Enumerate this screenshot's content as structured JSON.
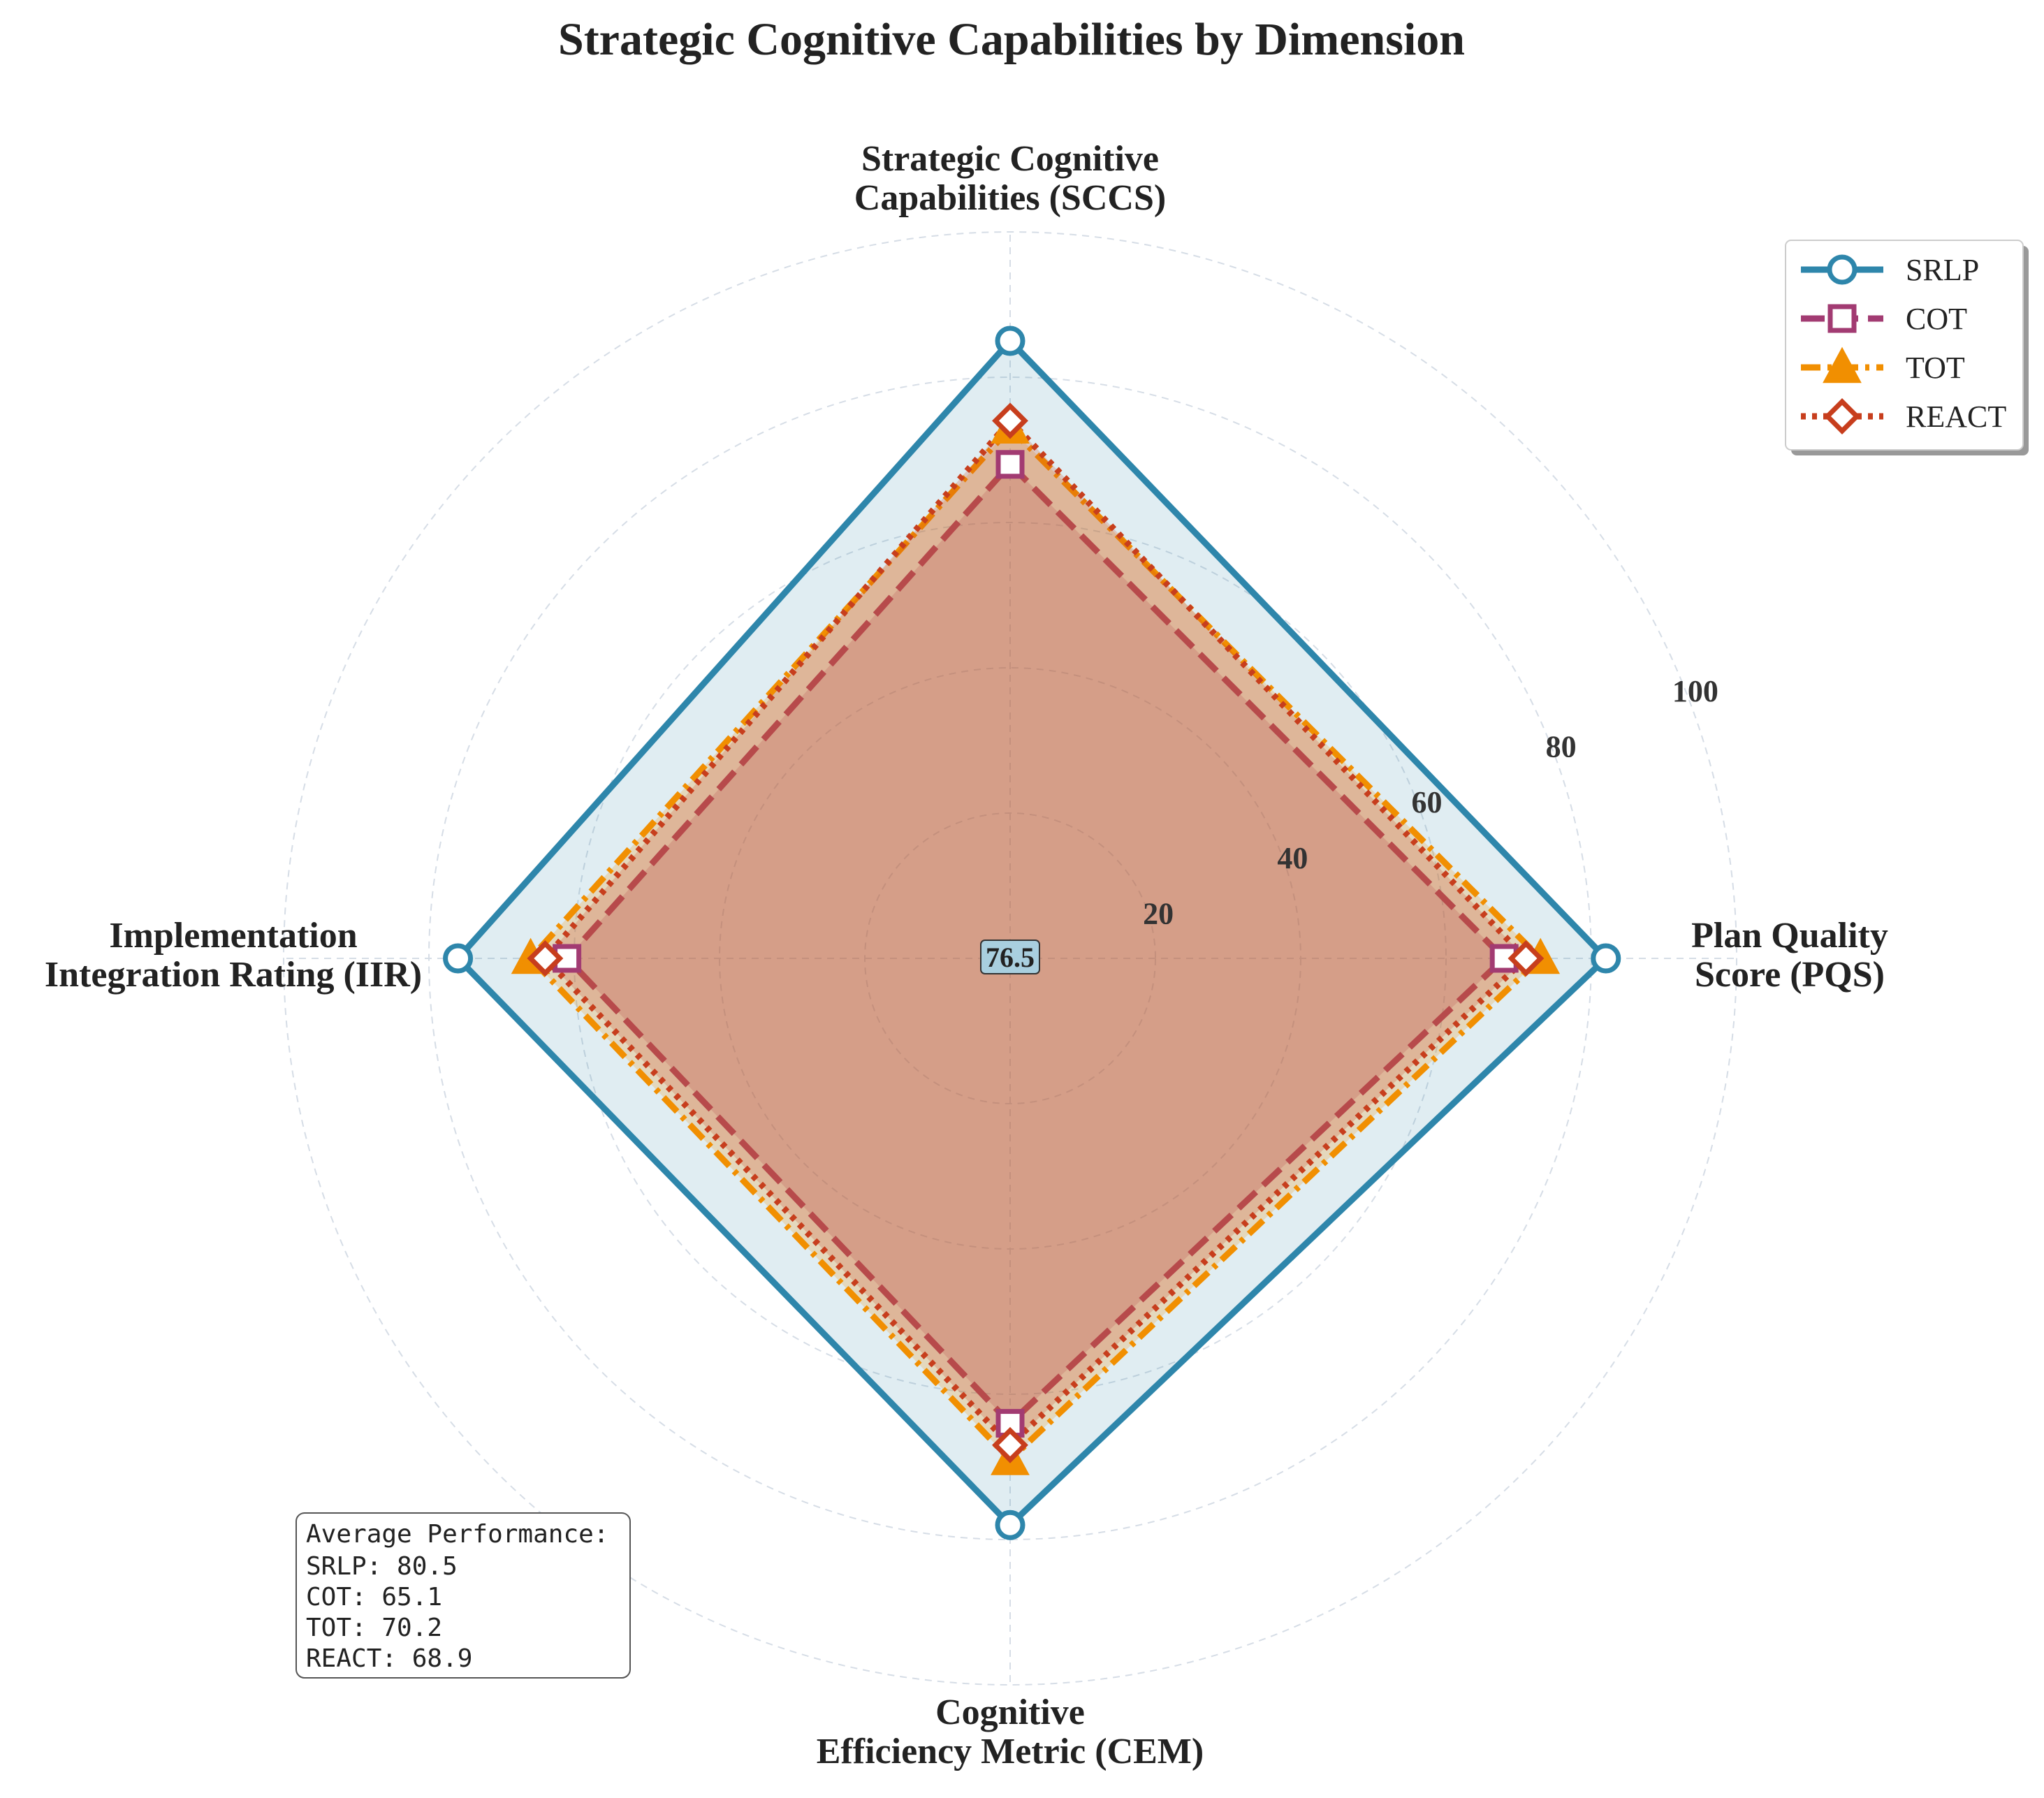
{
  "chart_data": {
    "type": "radar",
    "title": "Strategic Cognitive Capabilities by Dimension",
    "axes": [
      [
        "Strategic Cognitive",
        "Capabilities (SCCS)"
      ],
      [
        "Plan Quality",
        "Score (PQS)"
      ],
      [
        "Cognitive",
        "Efficiency Metric (CEM)"
      ],
      [
        "Implementation",
        "Integration Rating (IIR)"
      ]
    ],
    "rlim": [
      0,
      100
    ],
    "rticks": [
      "20",
      "40",
      "60",
      "80",
      "100"
    ],
    "grid": true,
    "legend_position": "top-right",
    "center_label": "76.5",
    "series": [
      {
        "name": "SRLP",
        "color": "#2e86ab",
        "marker": "circle",
        "dash": "solid",
        "values": [
          85,
          82,
          78,
          76
        ]
      },
      {
        "name": "COT",
        "color": "#a23b72",
        "marker": "square",
        "dash": "dashed",
        "values": [
          68,
          68,
          64,
          61
        ]
      },
      {
        "name": "TOT",
        "color": "#f18f01",
        "marker": "triangle",
        "dash": "dashdot",
        "values": [
          73,
          73,
          69,
          66
        ]
      },
      {
        "name": "REACT",
        "color": "#c73e1d",
        "marker": "diamond",
        "dash": "dotted",
        "values": [
          74,
          71,
          67,
          64
        ]
      }
    ],
    "summary": {
      "title": "Average Performance:",
      "lines": [
        "SRLP: 80.5",
        "COT: 65.1",
        "TOT: 70.2",
        "REACT: 68.9"
      ]
    }
  }
}
